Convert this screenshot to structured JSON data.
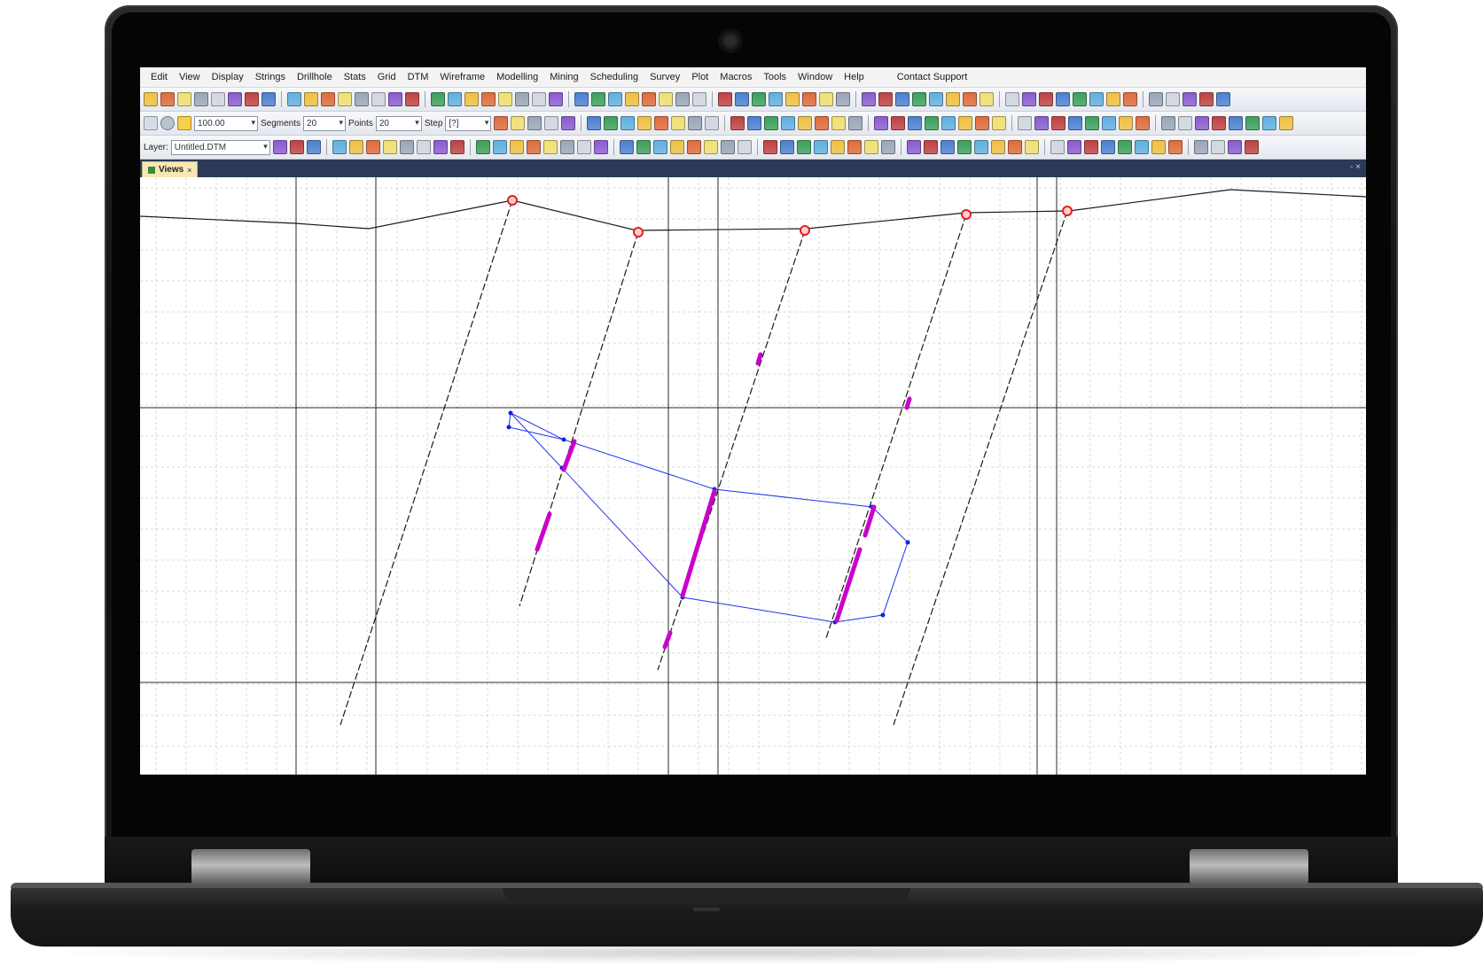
{
  "app": {
    "menu": [
      "Edit",
      "View",
      "Display",
      "Strings",
      "Drillhole",
      "Stats",
      "Grid",
      "DTM",
      "Wireframe",
      "Modelling",
      "Mining",
      "Scheduling",
      "Survey",
      "Plot",
      "Macros",
      "Tools",
      "Window",
      "Help"
    ],
    "support_label": "Contact Support",
    "toolbar2": {
      "scale_value": "100.00",
      "segments_label": "Segments",
      "segments_value": "20",
      "points_label": "Points",
      "points_value": "20",
      "step_label": "Step",
      "step_value": "[?]"
    },
    "toolbar3": {
      "layer_prefix": "Layer:",
      "layer_value": "Untitled.DTM"
    },
    "tab": {
      "label": "Views",
      "close": "×"
    },
    "pane_button": "- ×"
  },
  "colors": {
    "hole_trace": "#1a1a1a",
    "intersect": "#cc00cc",
    "polygon": "#2233ee",
    "collar": "#e02020",
    "grid_major": "#222222",
    "grid_minor": "#c8c8c8"
  }
}
